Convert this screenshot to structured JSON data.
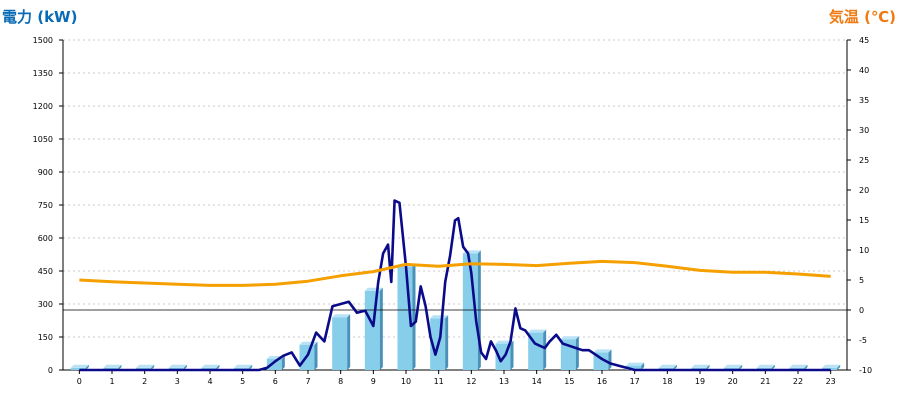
{
  "colors": {
    "power_axis": "#0a6bb5",
    "temp_axis": "#f07a10",
    "bar_front": "#87ceeb",
    "bar_side": "#4a90b8",
    "bar_top": "#b8e2f5",
    "power_line": "#0b0b8a",
    "temp_line": "#f5a000",
    "grid": "#bbbbbb"
  },
  "chart_data": {
    "type": "bar+line",
    "ylabel_left": "電力 (kW)",
    "ylabel_right": "気温 (℃)",
    "categories": [
      "0",
      "1",
      "2",
      "3",
      "4",
      "5",
      "6",
      "7",
      "8",
      "9",
      "10",
      "11",
      "12",
      "13",
      "14",
      "15",
      "16",
      "17",
      "18",
      "19",
      "20",
      "21",
      "22",
      "23"
    ],
    "ylim_left": [
      0,
      1500
    ],
    "yticks_left": [
      0,
      150,
      300,
      450,
      600,
      750,
      900,
      1050,
      1200,
      1350,
      1500
    ],
    "ylim_right": [
      -10,
      45
    ],
    "yticks_right": [
      -10,
      -5,
      0,
      5,
      10,
      15,
      20,
      25,
      30,
      35,
      40,
      45
    ],
    "grid": true,
    "series": [
      {
        "kind": "bar",
        "axis": "left",
        "values": [
          10,
          10,
          10,
          10,
          10,
          10,
          50,
          115,
          240,
          360,
          470,
          235,
          530,
          120,
          170,
          140,
          80,
          20,
          10,
          10,
          10,
          10,
          10,
          10
        ]
      },
      {
        "kind": "line",
        "axis": "left",
        "x": [
          0,
          0.5,
          1,
          1.5,
          2,
          2.5,
          3,
          3.5,
          4,
          4.5,
          5,
          5.5,
          5.75,
          6,
          6.25,
          6.5,
          6.75,
          7,
          7.25,
          7.5,
          7.75,
          8,
          8.25,
          8.5,
          8.75,
          9,
          9.15,
          9.3,
          9.45,
          9.55,
          9.65,
          9.8,
          10,
          10.15,
          10.3,
          10.45,
          10.6,
          10.75,
          10.9,
          11.05,
          11.2,
          11.35,
          11.5,
          11.6,
          11.75,
          11.9,
          12,
          12.15,
          12.3,
          12.45,
          12.6,
          12.75,
          12.9,
          13.05,
          13.2,
          13.35,
          13.5,
          13.65,
          13.8,
          13.95,
          14.1,
          14.25,
          14.4,
          14.6,
          14.8,
          15,
          15.2,
          15.4,
          15.6,
          15.8,
          16,
          16.25,
          16.5,
          16.75,
          17,
          17.25,
          17.5,
          18,
          19,
          20,
          21,
          22,
          23
        ],
        "values": [
          0,
          0,
          0,
          0,
          0,
          0,
          0,
          0,
          0,
          0,
          0,
          0,
          10,
          40,
          65,
          80,
          20,
          70,
          170,
          130,
          290,
          300,
          310,
          260,
          270,
          200,
          400,
          530,
          570,
          400,
          770,
          760,
          470,
          200,
          220,
          380,
          290,
          150,
          70,
          150,
          400,
          520,
          680,
          690,
          560,
          530,
          440,
          220,
          80,
          50,
          130,
          90,
          40,
          70,
          130,
          280,
          190,
          180,
          150,
          120,
          110,
          100,
          130,
          160,
          120,
          110,
          100,
          90,
          90,
          70,
          50,
          30,
          20,
          10,
          0,
          0,
          0,
          0,
          0,
          0,
          0,
          0,
          0
        ]
      },
      {
        "kind": "line",
        "axis": "right",
        "x": [
          0,
          1,
          2,
          3,
          4,
          5,
          6,
          7,
          8,
          9,
          10,
          11,
          12,
          13,
          14,
          15,
          16,
          17,
          18,
          19,
          20,
          21,
          22,
          23
        ],
        "values": [
          5,
          4.7,
          4.5,
          4.3,
          4.1,
          4.1,
          4.3,
          4.8,
          5.7,
          6.4,
          7.6,
          7.3,
          7.7,
          7.6,
          7.4,
          7.8,
          8.1,
          7.9,
          7.3,
          6.6,
          6.3,
          6.3,
          6,
          5.6
        ]
      }
    ]
  }
}
